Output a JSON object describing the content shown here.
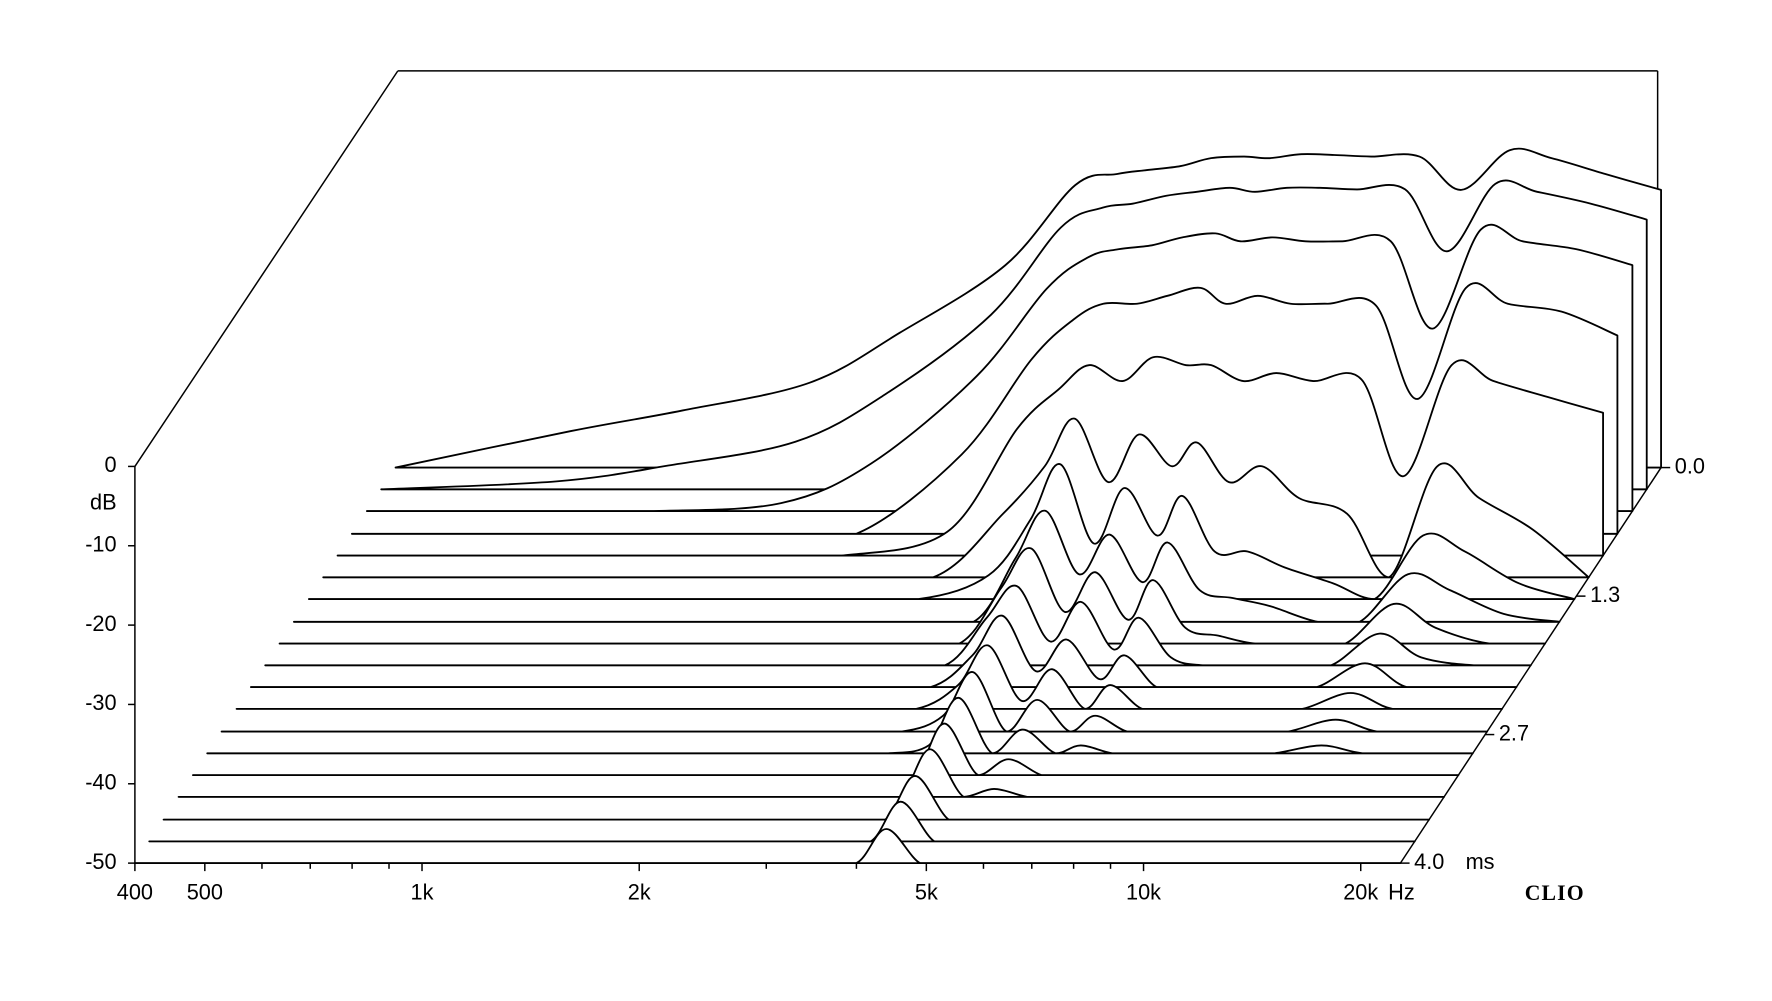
{
  "chart_data": {
    "type": "waterfall",
    "x": [
      400,
      700,
      1000,
      1500,
      2000,
      2800,
      3500,
      4000,
      4400,
      4900,
      5400,
      6000,
      6500,
      7200,
      8000,
      9000,
      10500,
      12000,
      14000,
      16000,
      19000,
      22700
    ],
    "xlim": [
      400,
      22700
    ],
    "xticks": [
      400,
      500,
      {
        "value": 1000,
        "label": "1k"
      },
      {
        "value": 2000,
        "label": "2k"
      },
      {
        "value": 5000,
        "label": "5k"
      },
      {
        "value": 10000,
        "label": "10k"
      },
      {
        "value": 20000,
        "label": "20k"
      }
    ],
    "xminor_ticks": [
      600,
      700,
      800,
      900,
      3000,
      4000,
      6000,
      7000,
      8000,
      9000
    ],
    "x_unit": "Hz",
    "log_x": true,
    "ylim": [
      -50,
      0
    ],
    "yticks": [
      0,
      -10,
      -20,
      -30,
      -40,
      -50
    ],
    "y_label": "dB",
    "zlim": [
      0,
      4.0
    ],
    "zticks": [
      {
        "value": 0,
        "label": "0.0"
      },
      1.3,
      2.7,
      {
        "value": 4.0,
        "label": "4.0"
      }
    ],
    "z_unit": "ms",
    "brand": "CLIO",
    "color": "#000000",
    "series": [
      {
        "z": 0,
        "values": [
          -50,
          -45.4,
          -42.8,
          -39.3,
          -33,
          -24.5,
          -14.4,
          -13,
          -12.5,
          -12,
          -11,
          -10.8,
          -11,
          -10.5,
          -10.6,
          -10.8,
          -10.8,
          -15,
          -10,
          -11,
          -13,
          -15
        ]
      },
      {
        "z": 0.22,
        "values": [
          -50,
          -49,
          -47,
          -44,
          -38,
          -28,
          -17,
          -14.5,
          -14,
          -13,
          -12.5,
          -12,
          -12.5,
          -12,
          -12,
          -12.2,
          -12.2,
          -20,
          -11.5,
          -12.5,
          -14,
          -16
        ]
      },
      {
        "z": 0.44,
        "values": [
          -50,
          -50,
          -50,
          -49,
          -44,
          -33,
          -22,
          -18,
          -17,
          -16.5,
          -15.5,
          -15,
          -16,
          -15.5,
          -16,
          -16,
          -16,
          -27,
          -14.5,
          -16,
          -17,
          -19
        ]
      },
      {
        "z": 0.67,
        "values": [
          -50,
          -50,
          -50,
          -50,
          -50,
          -40,
          -28,
          -23,
          -21,
          -21,
          -20,
          -19,
          -21,
          -20,
          -21,
          -21,
          -21.2,
          -33,
          -19,
          -21,
          -22,
          -25
        ]
      },
      {
        "z": 0.89,
        "values": [
          -50,
          -50,
          -50,
          -50,
          -50,
          -47,
          -34,
          -29,
          -26,
          -28,
          -25,
          -26,
          -26,
          -28,
          -27,
          -28,
          -27.8,
          -40,
          -26,
          -28,
          -30,
          -32
        ]
      },
      {
        "z": 1.11,
        "values": [
          -50,
          -50,
          -50,
          -50,
          -50,
          -50,
          -42,
          -36,
          -30,
          -38,
          -32,
          -36,
          -33,
          -38,
          -36,
          -40,
          -42,
          -50,
          -36,
          -40,
          -44,
          -50
        ]
      },
      {
        "z": 1.33,
        "values": [
          -50,
          -50,
          -50,
          -50,
          -50,
          -50,
          -47,
          -40,
          -33,
          -43,
          -36,
          -42,
          -37,
          -44,
          -44,
          -46,
          -48,
          -50,
          -42,
          -44,
          -48,
          -50
        ]
      },
      {
        "z": 1.56,
        "values": [
          -50,
          -50,
          -50,
          -50,
          -50,
          -50,
          -50,
          -42,
          -36,
          -44,
          -39,
          -45,
          -40,
          -46,
          -47,
          -48,
          -50,
          -50,
          -44,
          -46,
          -49,
          -50
        ]
      },
      {
        "z": 1.78,
        "values": [
          -50,
          -50,
          -50,
          -50,
          -50,
          -50,
          -50,
          -43,
          -38,
          -46,
          -41,
          -47,
          -42,
          -48,
          -49,
          -50,
          -50,
          -50,
          -45,
          -48,
          -50,
          -50
        ]
      },
      {
        "z": 2.0,
        "values": [
          -50,
          -50,
          -50,
          -50,
          -50,
          -50,
          -50,
          -44,
          -40,
          -47,
          -42,
          -48,
          -44,
          -49,
          -50,
          -50,
          -50,
          -50,
          -46,
          -49,
          -50,
          -50
        ]
      },
      {
        "z": 2.22,
        "values": [
          -50,
          -50,
          -50,
          -50,
          -50,
          -50,
          -50,
          -46,
          -41,
          -48,
          -44,
          -49,
          -46,
          -50,
          -50,
          -50,
          -50,
          -50,
          -47,
          -50,
          -50,
          -50
        ]
      },
      {
        "z": 2.44,
        "values": [
          -50,
          -50,
          -50,
          -50,
          -50,
          -50,
          -50,
          -47,
          -42,
          -49,
          -45,
          -50,
          -47,
          -50,
          -50,
          -50,
          -50,
          -50,
          -48,
          -50,
          -50,
          -50
        ]
      },
      {
        "z": 2.67,
        "values": [
          -50,
          -50,
          -50,
          -50,
          -50,
          -50,
          -50,
          -48,
          -42.5,
          -50,
          -46,
          -50,
          -48,
          -50,
          -50,
          -50,
          -50,
          -50,
          -48.5,
          -50,
          -50,
          -50
        ]
      },
      {
        "z": 2.89,
        "values": [
          -50,
          -50,
          -50,
          -50,
          -50,
          -50,
          -50,
          -49,
          -43,
          -50,
          -47,
          -50,
          -49,
          -50,
          -50,
          -50,
          -50,
          -50,
          -49,
          -50,
          -50,
          -50
        ]
      },
      {
        "z": 3.11,
        "values": [
          -50,
          -50,
          -50,
          -50,
          -50,
          -50,
          -50,
          -50,
          -43.5,
          -50,
          -48,
          -50,
          -50,
          -50,
          -50,
          -50,
          -50,
          -50,
          -50,
          -50,
          -50,
          -50
        ]
      },
      {
        "z": 3.33,
        "values": [
          -50,
          -50,
          -50,
          -50,
          -50,
          -50,
          -50,
          -50,
          -44,
          -50,
          -49,
          -50,
          -50,
          -50,
          -50,
          -50,
          -50,
          -50,
          -50,
          -50,
          -50,
          -50
        ]
      },
      {
        "z": 3.56,
        "values": [
          -50,
          -50,
          -50,
          -50,
          -50,
          -50,
          -50,
          -50,
          -44.5,
          -50,
          -50,
          -50,
          -50,
          -50,
          -50,
          -50,
          -50,
          -50,
          -50,
          -50,
          -50,
          -50
        ]
      },
      {
        "z": 3.78,
        "values": [
          -50,
          -50,
          -50,
          -50,
          -50,
          -50,
          -50,
          -50,
          -45,
          -50,
          -50,
          -50,
          -50,
          -50,
          -50,
          -50,
          -50,
          -50,
          -50,
          -50,
          -50,
          -50
        ]
      },
      {
        "z": 4.0,
        "values": [
          -50,
          -50,
          -50,
          -50,
          -50,
          -50,
          -50,
          -50,
          -45.7,
          -50,
          -50,
          -50,
          -50,
          -50,
          -50,
          -50,
          -50,
          -50,
          -50,
          -50,
          -50,
          -50
        ]
      }
    ]
  }
}
